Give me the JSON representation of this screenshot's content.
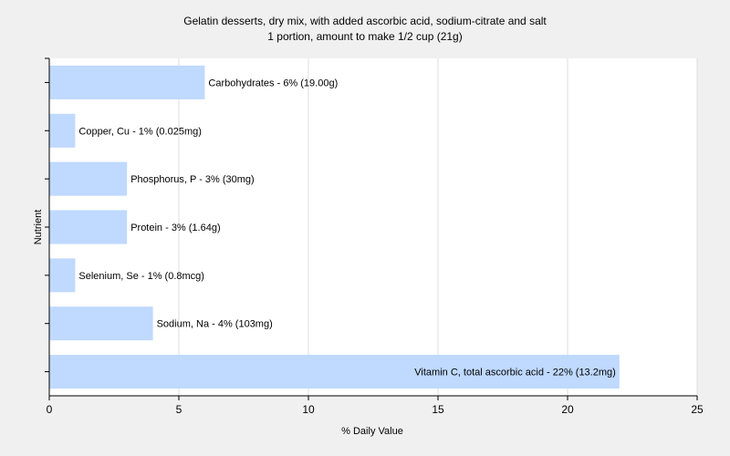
{
  "chart_data": {
    "type": "bar",
    "orientation": "horizontal",
    "title": "Gelatin desserts, dry mix, with added ascorbic acid, sodium-citrate and salt",
    "subtitle": "1 portion, amount to make 1/2 cup (21g)",
    "xlabel": "% Daily Value",
    "ylabel": "Nutrient",
    "xlim": [
      0,
      25
    ],
    "xticks": [
      0,
      5,
      10,
      15,
      20,
      25
    ],
    "grid": true,
    "bar_color": "#bfd9ff",
    "categories": [
      "Carbohydrates",
      "Copper, Cu",
      "Phosphorus, P",
      "Protein",
      "Selenium, Se",
      "Sodium, Na",
      "Vitamin C, total ascorbic acid"
    ],
    "values": [
      6,
      1,
      3,
      3,
      1,
      4,
      22
    ],
    "labels": [
      "Carbohydrates - 6% (19.00g)",
      "Copper, Cu - 1% (0.025mg)",
      "Phosphorus, P - 3% (30mg)",
      "Protein - 3% (1.64g)",
      "Selenium, Se - 1% (0.8mcg)",
      "Sodium, Na - 4% (103mg)",
      "Vitamin C, total ascorbic acid - 22% (13.2mg)"
    ]
  }
}
